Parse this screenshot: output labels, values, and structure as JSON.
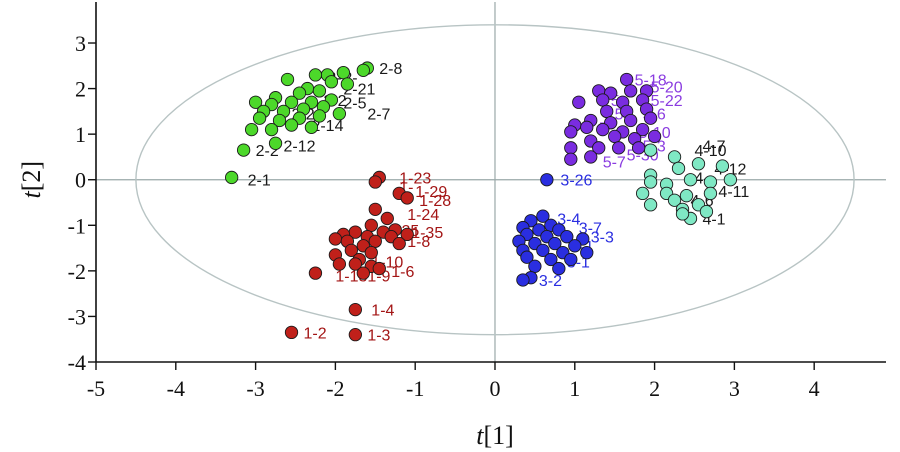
{
  "chart_data": {
    "type": "scatter",
    "title": "",
    "xlabel": "t[1]",
    "ylabel": "t[2]",
    "xlim": [
      -5,
      4.9
    ],
    "ylim": [
      -4,
      3.9
    ],
    "xticks": [
      -5,
      -4,
      -3,
      -2,
      -1,
      0,
      1,
      2,
      3,
      4
    ],
    "yticks": [
      -4,
      -3,
      -2,
      -1,
      0,
      1,
      2,
      3
    ],
    "tick_labels_x": [
      "-5",
      "-4",
      "-3",
      "-2",
      "-1",
      "0",
      "1",
      "2",
      "3",
      "4"
    ],
    "tick_labels_y": [
      "-4",
      "-3",
      "-2",
      "-1",
      "0",
      "1",
      "2",
      "3"
    ],
    "grid": false,
    "reference_lines": {
      "x": 0,
      "y": 0
    },
    "ellipse": {
      "center": [
        0,
        0
      ],
      "semi_axis_x": 4.5,
      "semi_axis_y": 3.4
    },
    "colors": {
      "group1": "#c0201a",
      "group2": "#4cd82a",
      "group3": "#2a2ee0",
      "group4": "#7fe8c4",
      "group5": "#7a2ce0",
      "label1": "#a31515",
      "label2": "#1a1a1a",
      "label3": "#2a2ee0",
      "label4": "#1a1a1a",
      "label5": "#8a3ce0",
      "axis": "#111111",
      "refline": "#9aa8a8",
      "ellipse": "#b8c4c4"
    },
    "series": [
      {
        "group": "1",
        "points": [
          [
            -1.45,
            0.05
          ],
          [
            -1.5,
            -0.05
          ],
          [
            -1.2,
            -0.3
          ],
          [
            -1.1,
            -0.4
          ],
          [
            -1.5,
            -0.65
          ],
          [
            -1.35,
            -0.85
          ],
          [
            -1.55,
            -1.0
          ],
          [
            -1.25,
            -1.1
          ],
          [
            -1.4,
            -1.15
          ],
          [
            -1.1,
            -1.2
          ],
          [
            -1.3,
            -1.25
          ],
          [
            -1.6,
            -1.25
          ],
          [
            -1.75,
            -1.15
          ],
          [
            -1.9,
            -1.2
          ],
          [
            -2.0,
            -1.3
          ],
          [
            -1.85,
            -1.35
          ],
          [
            -1.5,
            -1.35
          ],
          [
            -1.2,
            -1.4
          ],
          [
            -1.65,
            -1.45
          ],
          [
            -1.8,
            -1.55
          ],
          [
            -2.0,
            -1.65
          ],
          [
            -1.55,
            -1.6
          ],
          [
            -1.7,
            -1.75
          ],
          [
            -1.95,
            -1.85
          ],
          [
            -1.75,
            -1.85
          ],
          [
            -1.55,
            -1.9
          ],
          [
            -1.45,
            -1.95
          ],
          [
            -1.65,
            -2.05
          ],
          [
            -2.25,
            -2.05
          ],
          [
            -1.75,
            -2.85
          ],
          [
            -2.55,
            -3.35
          ],
          [
            -1.75,
            -3.4
          ]
        ],
        "labels": [
          {
            "text": "1-23",
            "x": -1.2,
            "y": 0.05
          },
          {
            "text": "1-",
            "x": -1.2,
            "y": -0.15
          },
          {
            "text": "1-29",
            "x": -1.0,
            "y": -0.25
          },
          {
            "text": "1-28",
            "x": -0.95,
            "y": -0.45
          },
          {
            "text": "1-24",
            "x": -1.1,
            "y": -0.75
          },
          {
            "text": "1-25",
            "x": -1.35,
            "y": -1.1
          },
          {
            "text": "1-35",
            "x": -1.05,
            "y": -1.15
          },
          {
            "text": "1-8",
            "x": -1.1,
            "y": -1.35
          },
          {
            "text": "1-10",
            "x": -1.55,
            "y": -1.8
          },
          {
            "text": "1-6",
            "x": -1.3,
            "y": -2.0
          },
          {
            "text": "1-13",
            "x": -2.0,
            "y": -2.1
          },
          {
            "text": "1-9",
            "x": -1.6,
            "y": -2.1
          },
          {
            "text": "1-4",
            "x": -1.55,
            "y": -2.85
          },
          {
            "text": "1-2",
            "x": -2.4,
            "y": -3.35
          },
          {
            "text": "1-3",
            "x": -1.6,
            "y": -3.4
          }
        ]
      },
      {
        "group": "2",
        "points": [
          [
            -1.6,
            2.45
          ],
          [
            -1.65,
            2.4
          ],
          [
            -1.9,
            2.35
          ],
          [
            -2.1,
            2.3
          ],
          [
            -2.25,
            2.3
          ],
          [
            -2.6,
            2.2
          ],
          [
            -2.05,
            2.15
          ],
          [
            -1.85,
            2.1
          ],
          [
            -2.35,
            2.0
          ],
          [
            -2.2,
            1.95
          ],
          [
            -2.45,
            1.9
          ],
          [
            -2.75,
            1.8
          ],
          [
            -2.05,
            1.75
          ],
          [
            -2.3,
            1.7
          ],
          [
            -2.55,
            1.7
          ],
          [
            -2.8,
            1.65
          ],
          [
            -3.0,
            1.7
          ],
          [
            -2.15,
            1.6
          ],
          [
            -2.4,
            1.55
          ],
          [
            -2.65,
            1.5
          ],
          [
            -2.9,
            1.5
          ],
          [
            -1.95,
            1.45
          ],
          [
            -2.2,
            1.4
          ],
          [
            -2.45,
            1.35
          ],
          [
            -2.7,
            1.3
          ],
          [
            -2.95,
            1.35
          ],
          [
            -2.3,
            1.15
          ],
          [
            -2.55,
            1.2
          ],
          [
            -2.8,
            1.1
          ],
          [
            -3.05,
            1.1
          ],
          [
            -2.75,
            0.8
          ],
          [
            -3.15,
            0.65
          ],
          [
            -3.3,
            0.05
          ]
        ],
        "labels": [
          {
            "text": "2-8",
            "x": -1.45,
            "y": 2.45
          },
          {
            "text": "2-",
            "x": -2.1,
            "y": 2.25
          },
          {
            "text": "2-",
            "x": -1.9,
            "y": 2.25
          },
          {
            "text": "2-21",
            "x": -1.9,
            "y": 2.0
          },
          {
            "text": "2-2",
            "x": -2.15,
            "y": 1.75
          },
          {
            "text": "2-5",
            "x": -1.9,
            "y": 1.7
          },
          {
            "text": "2-7",
            "x": -1.6,
            "y": 1.45
          },
          {
            "text": "2-2",
            "x": -2.55,
            "y": 1.45
          },
          {
            "text": "2-14",
            "x": -2.3,
            "y": 1.2
          },
          {
            "text": "2-12",
            "x": -2.65,
            "y": 0.75
          },
          {
            "text": "2-2",
            "x": -3.0,
            "y": 0.65
          },
          {
            "text": "2-1",
            "x": -3.1,
            "y": 0.0
          }
        ]
      },
      {
        "group": "3",
        "points": [
          [
            0.65,
            0.0
          ],
          [
            0.6,
            -0.8
          ],
          [
            0.45,
            -0.9
          ],
          [
            0.7,
            -1.0
          ],
          [
            0.35,
            -1.05
          ],
          [
            0.55,
            -1.1
          ],
          [
            0.8,
            -1.1
          ],
          [
            0.4,
            -1.2
          ],
          [
            0.65,
            -1.25
          ],
          [
            0.9,
            -1.25
          ],
          [
            1.1,
            -1.3
          ],
          [
            0.3,
            -1.35
          ],
          [
            0.5,
            -1.4
          ],
          [
            0.75,
            -1.4
          ],
          [
            1.0,
            -1.45
          ],
          [
            0.35,
            -1.55
          ],
          [
            0.6,
            -1.55
          ],
          [
            0.85,
            -1.6
          ],
          [
            1.15,
            -1.6
          ],
          [
            0.4,
            -1.7
          ],
          [
            0.7,
            -1.75
          ],
          [
            0.95,
            -1.75
          ],
          [
            0.5,
            -1.9
          ],
          [
            0.8,
            -1.95
          ],
          [
            0.45,
            -2.15
          ],
          [
            0.35,
            -2.2
          ]
        ],
        "labels": [
          {
            "text": "3-26",
            "x": 0.82,
            "y": 0.0
          },
          {
            "text": "3-4",
            "x": 0.78,
            "y": -0.85
          },
          {
            "text": "3-7",
            "x": 1.05,
            "y": -1.05
          },
          {
            "text": "3-3",
            "x": 1.2,
            "y": -1.25
          },
          {
            "text": "3-1",
            "x": 0.95,
            "y": -1.45
          },
          {
            "text": "3-1",
            "x": 0.9,
            "y": -1.8
          },
          {
            "text": "3-2",
            "x": 0.55,
            "y": -2.2
          }
        ]
      },
      {
        "group": "4",
        "points": [
          [
            1.95,
            0.65
          ],
          [
            2.25,
            0.5
          ],
          [
            1.95,
            0.1
          ],
          [
            2.3,
            0.25
          ],
          [
            2.55,
            0.35
          ],
          [
            2.85,
            0.3
          ],
          [
            1.95,
            -0.05
          ],
          [
            2.15,
            -0.1
          ],
          [
            2.45,
            0.0
          ],
          [
            2.7,
            -0.05
          ],
          [
            2.95,
            0.0
          ],
          [
            1.85,
            -0.3
          ],
          [
            2.15,
            -0.3
          ],
          [
            2.4,
            -0.35
          ],
          [
            2.7,
            -0.3
          ],
          [
            2.25,
            -0.45
          ],
          [
            2.55,
            -0.55
          ],
          [
            1.95,
            -0.55
          ],
          [
            2.35,
            -0.65
          ],
          [
            2.65,
            -0.7
          ],
          [
            2.45,
            -0.85
          ],
          [
            2.35,
            -0.75
          ]
        ],
        "labels": [
          {
            "text": "4-7",
            "x": 2.6,
            "y": 0.75
          },
          {
            "text": "4-10",
            "x": 2.5,
            "y": 0.65
          },
          {
            "text": "4-12",
            "x": 2.75,
            "y": 0.25
          },
          {
            "text": "4-",
            "x": 2.5,
            "y": 0.05
          },
          {
            "text": "4-11",
            "x": 2.8,
            "y": -0.25
          },
          {
            "text": "4-6",
            "x": 2.45,
            "y": -0.45
          },
          {
            "text": "4-1",
            "x": 2.6,
            "y": -0.85
          }
        ]
      },
      {
        "group": "5",
        "points": [
          [
            1.65,
            2.2
          ],
          [
            1.3,
            1.95
          ],
          [
            1.45,
            1.9
          ],
          [
            1.7,
            1.95
          ],
          [
            1.9,
            1.95
          ],
          [
            1.05,
            1.7
          ],
          [
            1.35,
            1.75
          ],
          [
            1.6,
            1.7
          ],
          [
            1.85,
            1.75
          ],
          [
            1.4,
            1.5
          ],
          [
            1.65,
            1.5
          ],
          [
            1.9,
            1.55
          ],
          [
            1.2,
            1.3
          ],
          [
            1.45,
            1.25
          ],
          [
            1.7,
            1.3
          ],
          [
            1.95,
            1.35
          ],
          [
            1.0,
            1.2
          ],
          [
            1.15,
            1.15
          ],
          [
            1.35,
            1.1
          ],
          [
            1.6,
            1.05
          ],
          [
            1.85,
            1.1
          ],
          [
            0.95,
            1.05
          ],
          [
            1.5,
            0.95
          ],
          [
            1.75,
            0.9
          ],
          [
            2.0,
            0.95
          ],
          [
            1.2,
            0.85
          ],
          [
            1.3,
            0.7
          ],
          [
            1.55,
            0.7
          ],
          [
            1.8,
            0.7
          ],
          [
            0.95,
            0.7
          ],
          [
            1.2,
            0.5
          ],
          [
            0.95,
            0.45
          ]
        ],
        "labels": [
          {
            "text": "5-18",
            "x": 1.75,
            "y": 2.2
          },
          {
            "text": "5-20",
            "x": 1.95,
            "y": 2.05
          },
          {
            "text": "5",
            "x": 1.45,
            "y": 1.75
          },
          {
            "text": "5-22",
            "x": 1.95,
            "y": 1.75
          },
          {
            "text": "5",
            "x": 1.5,
            "y": 1.45
          },
          {
            "text": "5-6",
            "x": 1.85,
            "y": 1.45
          },
          {
            "text": "5",
            "x": 1.3,
            "y": 1.15
          },
          {
            "text": "5-10",
            "x": 1.8,
            "y": 1.05
          },
          {
            "text": "5-3",
            "x": 1.85,
            "y": 0.75
          },
          {
            "text": "5-7",
            "x": 1.35,
            "y": 0.4
          },
          {
            "text": "5-30",
            "x": 1.65,
            "y": 0.55
          }
        ]
      }
    ]
  }
}
